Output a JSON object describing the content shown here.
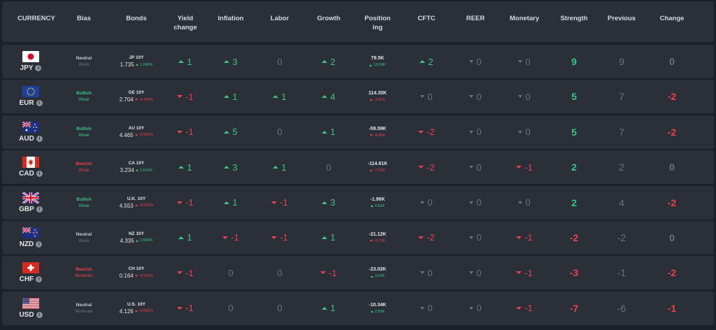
{
  "headers": [
    "CURRENCY",
    "Bias",
    "Bonds",
    "Yield change",
    "Inflation",
    "Labor",
    "Growth",
    "Positioning",
    "CFTC",
    "REER",
    "Monetary",
    "Strength",
    "Previous",
    "Change"
  ],
  "rows": [
    {
      "code": "JPY",
      "flag": "jp",
      "bias": "Neutral",
      "bias_tone": "neutral",
      "sub": "Weak",
      "sub_tone": "neu",
      "bond_name": "JP 10Y",
      "bond_val": "1.735",
      "bond_dir": "up",
      "bond_pct": "1.940%",
      "yield": {
        "dir": "up",
        "v": "1"
      },
      "inflation": {
        "dir": "up",
        "v": "3"
      },
      "labor": {
        "dir": "none",
        "v": "0"
      },
      "growth": {
        "dir": "up",
        "v": "2"
      },
      "pos_val": "79.5K",
      "pos_dir": "up",
      "pos_chg": "18.09K",
      "cftc": {
        "dir": "up",
        "v": "2"
      },
      "reer": {
        "dir": "neu",
        "v": "0"
      },
      "monetary": {
        "dir": "neu",
        "v": "0"
      },
      "strength": "9",
      "strength_tone": "up",
      "previous": "9",
      "change": "0",
      "change_tone": "neu"
    },
    {
      "code": "EUR",
      "flag": "eu",
      "bias": "Bullish",
      "bias_tone": "up",
      "sub": "Weak",
      "sub_tone": "up",
      "bond_name": "GE 10Y",
      "bond_val": "2.704",
      "bond_dir": "down",
      "bond_pct": "-0.470%",
      "yield": {
        "dir": "down",
        "v": "-1"
      },
      "inflation": {
        "dir": "up",
        "v": "1"
      },
      "labor": {
        "dir": "up",
        "v": "1"
      },
      "growth": {
        "dir": "up",
        "v": "4"
      },
      "pos_val": "114.35K",
      "pos_dir": "down",
      "pos_chg": "-3.41K",
      "cftc": {
        "dir": "neu",
        "v": "0"
      },
      "reer": {
        "dir": "neu",
        "v": "0"
      },
      "monetary": {
        "dir": "neu",
        "v": "0"
      },
      "strength": "5",
      "strength_tone": "up",
      "previous": "7",
      "change": "-2",
      "change_tone": "down"
    },
    {
      "code": "AUD",
      "flag": "au",
      "bias": "Bullish",
      "bias_tone": "up",
      "sub": "Weak",
      "sub_tone": "up",
      "bond_name": "AU 10Y",
      "bond_val": "4.465",
      "bond_dir": "down",
      "bond_pct": "-0.580%",
      "yield": {
        "dir": "down",
        "v": "-1"
      },
      "inflation": {
        "dir": "up",
        "v": "5"
      },
      "labor": {
        "dir": "none",
        "v": "0"
      },
      "growth": {
        "dir": "up",
        "v": "1"
      },
      "pos_val": "-59.59K",
      "pos_dir": "down",
      "pos_chg": "-8.45K",
      "cftc": {
        "dir": "down",
        "v": "-2"
      },
      "reer": {
        "dir": "neu",
        "v": "0"
      },
      "monetary": {
        "dir": "neu",
        "v": "0"
      },
      "strength": "5",
      "strength_tone": "up",
      "previous": "7",
      "change": "-2",
      "change_tone": "down"
    },
    {
      "code": "CAD",
      "flag": "ca",
      "bias": "Bearish",
      "bias_tone": "down",
      "sub": "Weak",
      "sub_tone": "down",
      "bond_name": "CA 10Y",
      "bond_val": "3.234",
      "bond_dir": "up",
      "bond_pct": "1.510%",
      "yield": {
        "dir": "up",
        "v": "1"
      },
      "inflation": {
        "dir": "up",
        "v": "3"
      },
      "labor": {
        "dir": "up",
        "v": "1"
      },
      "growth": {
        "dir": "none",
        "v": "0"
      },
      "pos_val": "-114.81K",
      "pos_dir": "down",
      "pos_chg": "-7.63K",
      "cftc": {
        "dir": "down",
        "v": "-2"
      },
      "reer": {
        "dir": "neu",
        "v": "0"
      },
      "monetary": {
        "dir": "down",
        "v": "-1"
      },
      "strength": "2",
      "strength_tone": "up",
      "previous": "2",
      "change": "0",
      "change_tone": "neu"
    },
    {
      "code": "GBP",
      "flag": "gb",
      "bias": "Bullish",
      "bias_tone": "up",
      "sub": "Weak",
      "sub_tone": "up",
      "bond_name": "U.K. 10Y",
      "bond_val": "4.553",
      "bond_dir": "down",
      "bond_pct": "-0.520%",
      "yield": {
        "dir": "down",
        "v": "-1"
      },
      "inflation": {
        "dir": "up",
        "v": "1"
      },
      "labor": {
        "dir": "down",
        "v": "-1"
      },
      "growth": {
        "dir": "up",
        "v": "3"
      },
      "pos_val": "-1.96K",
      "pos_dir": "up",
      "pos_chg": "4.62K",
      "cftc": {
        "dir": "neu",
        "v": "0"
      },
      "reer": {
        "dir": "neu",
        "v": "0"
      },
      "monetary": {
        "dir": "neu",
        "v": "0"
      },
      "strength": "2",
      "strength_tone": "up",
      "previous": "4",
      "change": "-2",
      "change_tone": "down"
    },
    {
      "code": "NZD",
      "flag": "nz",
      "bias": "Neutral",
      "bias_tone": "neutral",
      "sub": "Weak",
      "sub_tone": "neu",
      "bond_name": "NZ 10Y",
      "bond_val": "4.335",
      "bond_dir": "up",
      "bond_pct": "3.580%",
      "yield": {
        "dir": "up",
        "v": "1"
      },
      "inflation": {
        "dir": "down",
        "v": "-1"
      },
      "labor": {
        "dir": "down",
        "v": "-1"
      },
      "growth": {
        "dir": "up",
        "v": "1"
      },
      "pos_val": "-21.12K",
      "pos_dir": "down",
      "pos_chg": "-3.72K",
      "cftc": {
        "dir": "down",
        "v": "-2"
      },
      "reer": {
        "dir": "neu",
        "v": "0"
      },
      "monetary": {
        "dir": "down",
        "v": "-1"
      },
      "strength": "-2",
      "strength_tone": "down",
      "previous": "-2",
      "change": "0",
      "change_tone": "neu"
    },
    {
      "code": "CHF",
      "flag": "ch",
      "bias": "Bearish",
      "bias_tone": "down",
      "sub": "Moderate",
      "sub_tone": "down",
      "bond_name": "CH 10Y",
      "bond_val": "0.164",
      "bond_dir": "down",
      "bond_pct": "-0.530%",
      "yield": {
        "dir": "down",
        "v": "-1"
      },
      "inflation": {
        "dir": "none",
        "v": "0"
      },
      "labor": {
        "dir": "none",
        "v": "0"
      },
      "growth": {
        "dir": "down",
        "v": "-1"
      },
      "pos_val": "-23.02K",
      "pos_dir": "up",
      "pos_chg": "3.02K",
      "cftc": {
        "dir": "neu",
        "v": "0"
      },
      "reer": {
        "dir": "neu",
        "v": "0"
      },
      "monetary": {
        "dir": "down",
        "v": "-1"
      },
      "strength": "-3",
      "strength_tone": "down",
      "previous": "-1",
      "change": "-2",
      "change_tone": "down"
    },
    {
      "code": "USD",
      "flag": "us",
      "bias": "Neutral",
      "bias_tone": "neutral",
      "sub": "Moderate",
      "sub_tone": "neu",
      "bond_name": "U.S. 10Y",
      "bond_val": "4.126",
      "bond_dir": "down",
      "bond_pct": "-0.550%",
      "yield": {
        "dir": "down",
        "v": "-1"
      },
      "inflation": {
        "dir": "none",
        "v": "0"
      },
      "labor": {
        "dir": "none",
        "v": "0"
      },
      "growth": {
        "dir": "up",
        "v": "1"
      },
      "pos_val": "-10.34K",
      "pos_dir": "up",
      "pos_chg": "2.55K",
      "cftc": {
        "dir": "neu",
        "v": "0"
      },
      "reer": {
        "dir": "neu",
        "v": "0"
      },
      "monetary": {
        "dir": "down",
        "v": "-1"
      },
      "strength": "-7",
      "strength_tone": "down",
      "previous": "-6",
      "change": "-1",
      "change_tone": "down"
    }
  ],
  "colors": {
    "up": "#3ec486",
    "down": "#e8414f",
    "neutral": "#6c727b",
    "panel": "#2a2f38",
    "bg": "#1c2028"
  }
}
